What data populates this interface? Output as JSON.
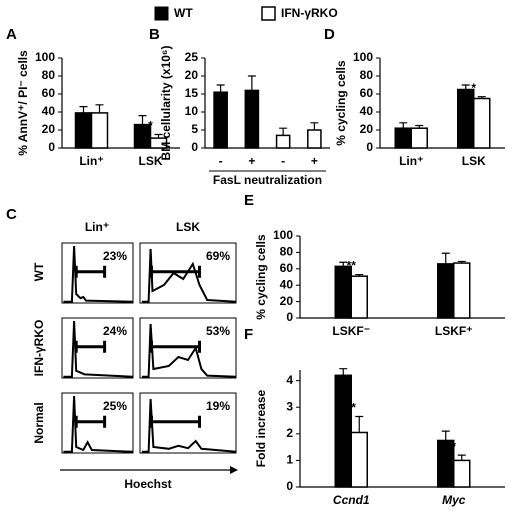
{
  "chart_data": [
    {
      "type": "bar",
      "label": "A",
      "ylabel": "% AnnV⁺/ PI⁻ cells",
      "categories": [
        "Lin⁺",
        "LSK"
      ],
      "series": [
        {
          "name": "WT",
          "color": "#000000",
          "values": [
            39,
            26
          ],
          "errors": [
            7,
            10
          ]
        },
        {
          "name": "IFN-γRKO",
          "color": "#ffffff",
          "values": [
            39,
            11
          ],
          "errors": [
            9,
            4
          ]
        }
      ],
      "ylim": [
        0,
        100
      ],
      "yticks": [
        0,
        20,
        40,
        60,
        80,
        100
      ],
      "annotations": [
        {
          "text": "*",
          "category": 1,
          "series": 1
        }
      ]
    },
    {
      "type": "bar",
      "label": "B",
      "ylabel": "BM cellularity (x10⁶)",
      "xlabel": "FasL neutralization",
      "categories": [
        "-",
        "+",
        "-",
        "+"
      ],
      "series": [
        {
          "name": "WT",
          "color": "#000000",
          "values": [
            15.5,
            16,
            null,
            null
          ],
          "errors": [
            2,
            4,
            null,
            null
          ]
        },
        {
          "name": "IFN-γRKO",
          "color": "#ffffff",
          "values": [
            null,
            null,
            3.5,
            5
          ],
          "errors": [
            null,
            null,
            2,
            2
          ]
        }
      ],
      "ylim": [
        0,
        25
      ],
      "yticks": [
        0,
        5,
        10,
        15,
        20,
        25
      ]
    },
    {
      "type": "bar",
      "label": "D",
      "ylabel": "% cycling cells",
      "categories": [
        "Lin⁺",
        "LSK"
      ],
      "series": [
        {
          "name": "WT",
          "color": "#000000",
          "values": [
            22,
            65
          ],
          "errors": [
            6,
            5
          ]
        },
        {
          "name": "IFN-γRKO",
          "color": "#ffffff",
          "values": [
            22,
            55
          ],
          "errors": [
            3,
            2
          ]
        }
      ],
      "ylim": [
        0,
        100
      ],
      "yticks": [
        0,
        20,
        40,
        60,
        80,
        100
      ],
      "annotations": [
        {
          "text": "*",
          "category": 1,
          "series": 1
        }
      ]
    },
    {
      "type": "bar",
      "label": "E",
      "ylabel": "% cycling cells",
      "categories": [
        "LSKF⁻",
        "LSKF⁺"
      ],
      "series": [
        {
          "name": "WT",
          "color": "#000000",
          "values": [
            63,
            66
          ],
          "errors": [
            5,
            13
          ]
        },
        {
          "name": "IFN-γRKO",
          "color": "#ffffff",
          "values": [
            51,
            67
          ],
          "errors": [
            2,
            2
          ]
        }
      ],
      "ylim": [
        0,
        100
      ],
      "yticks": [
        0,
        20,
        40,
        60,
        80,
        100
      ],
      "annotations": [
        {
          "text": "**",
          "category": 0,
          "series": 1
        }
      ]
    },
    {
      "type": "bar",
      "label": "F",
      "ylabel": "Fold increase",
      "categories": [
        "Ccnd1",
        "Myc"
      ],
      "italic_categories": true,
      "series": [
        {
          "name": "WT",
          "color": "#000000",
          "values": [
            4.2,
            1.75
          ],
          "errors": [
            0.25,
            0.35
          ]
        },
        {
          "name": "IFN-γRKO",
          "color": "#ffffff",
          "values": [
            2.05,
            1.0
          ],
          "errors": [
            0.6,
            0.2
          ]
        }
      ],
      "ylim": [
        0,
        4.4
      ],
      "yticks": [
        0,
        1,
        2,
        3,
        4
      ],
      "annotations": [
        {
          "text": "**",
          "category": 0,
          "series": 1
        },
        {
          "text": "*",
          "category": 1,
          "series": 1
        }
      ]
    }
  ],
  "flow_panel": {
    "label": "C",
    "columns": [
      "Lin⁺",
      "LSK"
    ],
    "rows": [
      "WT",
      "IFN-γRKO",
      "Normal"
    ],
    "percentages": [
      [
        "23%",
        "69%"
      ],
      [
        "24%",
        "53%"
      ],
      [
        "25%",
        "19%"
      ]
    ],
    "xlabel": "Hoechst"
  }
}
